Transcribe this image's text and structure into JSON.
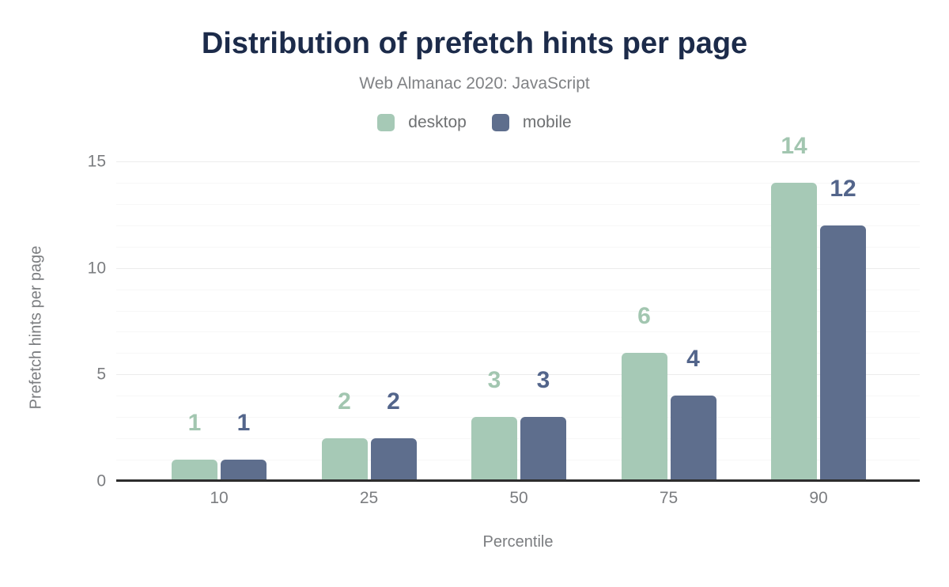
{
  "chart_data": {
    "type": "bar",
    "title": "Distribution of prefetch hints per page",
    "subtitle": "Web Almanac 2020: JavaScript",
    "categories": [
      "10",
      "25",
      "50",
      "75",
      "90"
    ],
    "series": [
      {
        "name": "desktop",
        "values": [
          1,
          2,
          3,
          6,
          14
        ],
        "color": "#a6c9b6",
        "label_color": "#a2c6b0"
      },
      {
        "name": "mobile",
        "values": [
          1,
          2,
          3,
          4,
          12
        ],
        "color": "#5e6e8d",
        "label_color": "#53658b"
      }
    ],
    "xlabel": "Percentile",
    "ylabel": "Prefetch hints per page",
    "ylim": [
      0,
      15
    ],
    "y_ticks": [
      0,
      5,
      10,
      15
    ],
    "minor_grid_step": 1,
    "major_grid_step": 5,
    "grid": "horizontal",
    "legend_position": "top",
    "value_labels": true
  },
  "colors": {
    "bg": "#ffffff",
    "title": "#1c2b4a",
    "subtitle": "#808285",
    "legend-text": "#6e7072",
    "axis-text": "#7b7d80",
    "grid-major": "#ececec",
    "grid-minor": "#f7f7f7",
    "baseline": "#2d2d2d"
  }
}
